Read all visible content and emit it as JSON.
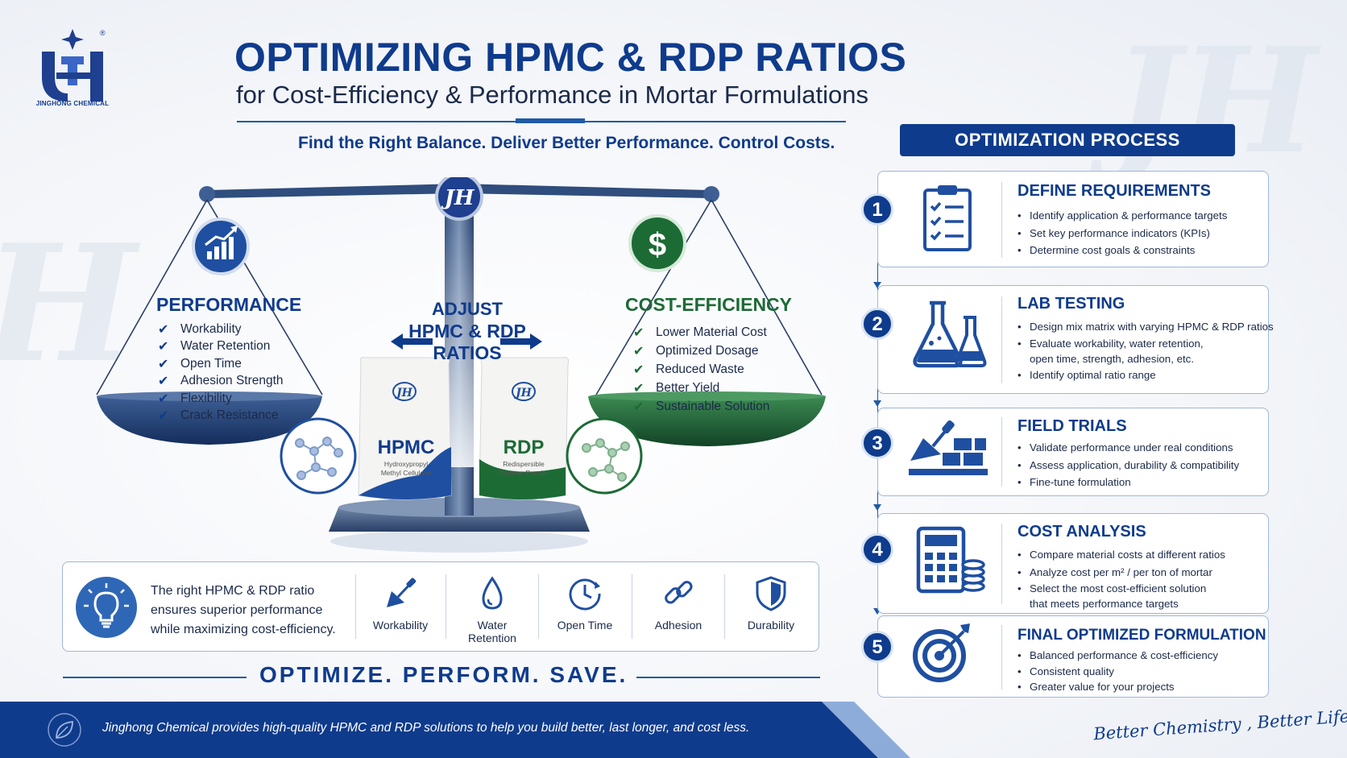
{
  "brand": {
    "logo_text": "JINGHONG CHEMICAL",
    "monogram": "JH",
    "registered_mark": "®"
  },
  "header": {
    "title": "OPTIMIZING HPMC & RDP RATIOS",
    "subtitle": "for Cost-Efficiency & Performance in Mortar Formulations",
    "tagline": "Find the Right Balance. Deliver Better Performance. Control Costs."
  },
  "scale": {
    "performance": {
      "title": "PERFORMANCE",
      "icon": "growth-chart-icon",
      "items": [
        "Workability",
        "Water Retention",
        "Open Time",
        "Adhesion Strength",
        "Flexibility",
        "Crack Resistance"
      ]
    },
    "cost": {
      "title": "COST-EFFICIENCY",
      "icon": "dollar-icon",
      "items": [
        "Lower Material Cost",
        "Optimized Dosage",
        "Reduced Waste",
        "Better Yield",
        "Sustainable Solution"
      ]
    },
    "center": {
      "line1": "ADJUST",
      "line2": "HPMC & RDP",
      "line3": "RATIOS"
    },
    "bags": {
      "hpmc": {
        "name": "HPMC",
        "sub1": "Hydroxypropyl",
        "sub2": "Methyl Cellulose"
      },
      "rdp": {
        "name": "RDP",
        "sub1": "Redispersible",
        "sub2": "Polymer Powder"
      }
    }
  },
  "info_strip": {
    "text": "The right  HPMC & RDP ratio ensures superior performance while maximizing cost-efficiency.",
    "features": [
      {
        "label": "Workability",
        "icon": "trowel-icon"
      },
      {
        "label1": "Water",
        "label2": "Retention",
        "icon": "water-drop-icon"
      },
      {
        "label": "Open Time",
        "icon": "clock-icon"
      },
      {
        "label": "Adhesion",
        "icon": "link-icon"
      },
      {
        "label": "Durability",
        "icon": "shield-icon"
      }
    ]
  },
  "slogan": "OPTIMIZE. PERFORM. SAVE.",
  "footer": {
    "text": "Jinghong Chemical provides high-quality HPMC and RDP solutions to help you build better, last longer, and cost less.",
    "signature": "Better Chemistry , Better Life."
  },
  "process": {
    "header": "OPTIMIZATION PROCESS",
    "steps": [
      {
        "num": "1",
        "title": "DEFINE REQUIREMENTS",
        "icon": "clipboard-icon",
        "items": [
          "Identify application & performance targets",
          "Set key performance indicators (KPIs)",
          "Determine cost goals & constraints"
        ]
      },
      {
        "num": "2",
        "title": "LAB TESTING",
        "icon": "flask-icon",
        "items": [
          "Design mix matrix with varying HPMC & RDP ratios",
          "Evaluate workability, water retention,",
          "open time, strength, adhesion, etc.",
          "Identify optimal ratio range"
        ]
      },
      {
        "num": "3",
        "title": "FIELD TRIALS",
        "icon": "trowel-bricks-icon",
        "items": [
          "Validate performance under real conditions",
          "Assess application, durability & compatibility",
          "Fine-tune formulation"
        ]
      },
      {
        "num": "4",
        "title": "COST ANALYSIS",
        "icon": "calculator-icon",
        "items": [
          "Compare material costs at different ratios",
          "Analyze cost per m² / per ton of mortar",
          "Select the most cost-efficient solution",
          "that meets performance targets"
        ]
      },
      {
        "num": "5",
        "title": "FINAL OPTIMIZED FORMULATION",
        "icon": "target-icon",
        "items": [
          "Balanced performance & cost-efficiency",
          "Consistent quality",
          "Greater value for your projects"
        ]
      }
    ]
  },
  "colors": {
    "primary_blue": "#0f3b8c",
    "accent_green": "#1c6b35",
    "band_blue": "#0f3b8c"
  }
}
